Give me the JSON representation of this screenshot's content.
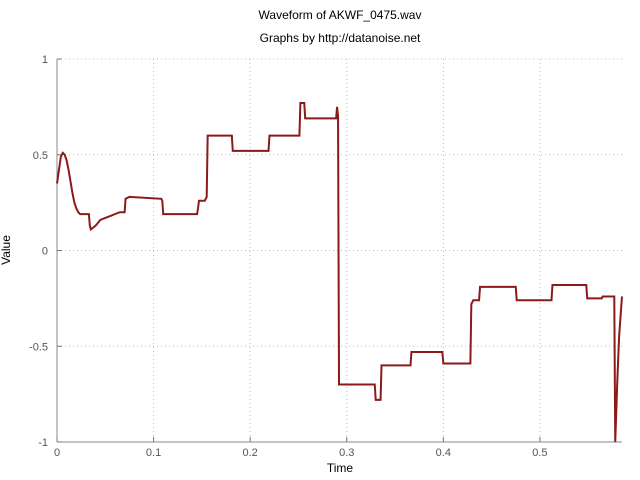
{
  "chart_data": {
    "type": "line",
    "title": "Waveform of AKWF_0475.wav",
    "subtitle": "Graphs by http://datanoise.net",
    "xlabel": "Time",
    "ylabel": "Value",
    "xlim": [
      0,
      0.585
    ],
    "ylim": [
      -1,
      1
    ],
    "x_ticks": [
      0,
      0.1,
      0.2,
      0.3,
      0.4,
      0.5
    ],
    "x_tick_labels": [
      "0",
      "0.1",
      "0.2",
      "0.3",
      "0.4",
      "0.5"
    ],
    "y_ticks": [
      1,
      0.5,
      0,
      -0.5,
      -1
    ],
    "y_tick_labels": [
      "1",
      "0.5",
      "0",
      "-0.5",
      "-1"
    ],
    "grid": true,
    "series": [
      {
        "color": "#8b1a1a",
        "x": [
          0,
          0.002,
          0.004,
          0.006,
          0.008,
          0.01,
          0.012,
          0.014,
          0.016,
          0.018,
          0.02,
          0.022,
          0.024,
          0.026,
          0.028,
          0.03,
          0.033,
          0.034,
          0.035,
          0.04,
          0.045,
          0.05,
          0.055,
          0.06,
          0.065,
          0.07,
          0.071,
          0.075,
          0.108,
          0.109,
          0.11,
          0.145,
          0.146,
          0.147,
          0.153,
          0.154,
          0.155,
          0.156,
          0.157,
          0.181,
          0.182,
          0.183,
          0.218,
          0.219,
          0.22,
          0.25,
          0.251,
          0.252,
          0.255,
          0.256,
          0.257,
          0.288,
          0.289,
          0.29,
          0.291,
          0.292,
          0.293,
          0.328,
          0.329,
          0.33,
          0.335,
          0.336,
          0.337,
          0.365,
          0.366,
          0.367,
          0.398,
          0.399,
          0.4,
          0.427,
          0.428,
          0.429,
          0.43,
          0.431,
          0.436,
          0.437,
          0.438,
          0.474,
          0.475,
          0.476,
          0.511,
          0.512,
          0.513,
          0.547,
          0.548,
          0.549,
          0.563,
          0.564,
          0.565,
          0.575,
          0.576,
          0.577,
          0.578,
          0.58,
          0.582,
          0.585
        ],
        "y": [
          0.35,
          0.42,
          0.49,
          0.51,
          0.5,
          0.47,
          0.42,
          0.36,
          0.3,
          0.25,
          0.22,
          0.2,
          0.19,
          0.19,
          0.19,
          0.19,
          0.19,
          0.13,
          0.11,
          0.13,
          0.16,
          0.17,
          0.18,
          0.19,
          0.2,
          0.2,
          0.27,
          0.28,
          0.27,
          0.26,
          0.19,
          0.19,
          0.22,
          0.26,
          0.26,
          0.27,
          0.28,
          0.6,
          0.6,
          0.6,
          0.52,
          0.52,
          0.52,
          0.52,
          0.6,
          0.6,
          0.6,
          0.77,
          0.77,
          0.77,
          0.69,
          0.69,
          0.69,
          0.75,
          0.7,
          -0.7,
          -0.7,
          -0.7,
          -0.7,
          -0.78,
          -0.78,
          -0.6,
          -0.6,
          -0.6,
          -0.6,
          -0.53,
          -0.53,
          -0.53,
          -0.59,
          -0.59,
          -0.59,
          -0.28,
          -0.27,
          -0.26,
          -0.26,
          -0.26,
          -0.19,
          -0.19,
          -0.19,
          -0.26,
          -0.26,
          -0.26,
          -0.18,
          -0.18,
          -0.18,
          -0.25,
          -0.25,
          -0.25,
          -0.24,
          -0.24,
          -0.24,
          -0.24,
          -1.0,
          -0.7,
          -0.45,
          -0.24
        ]
      }
    ]
  }
}
